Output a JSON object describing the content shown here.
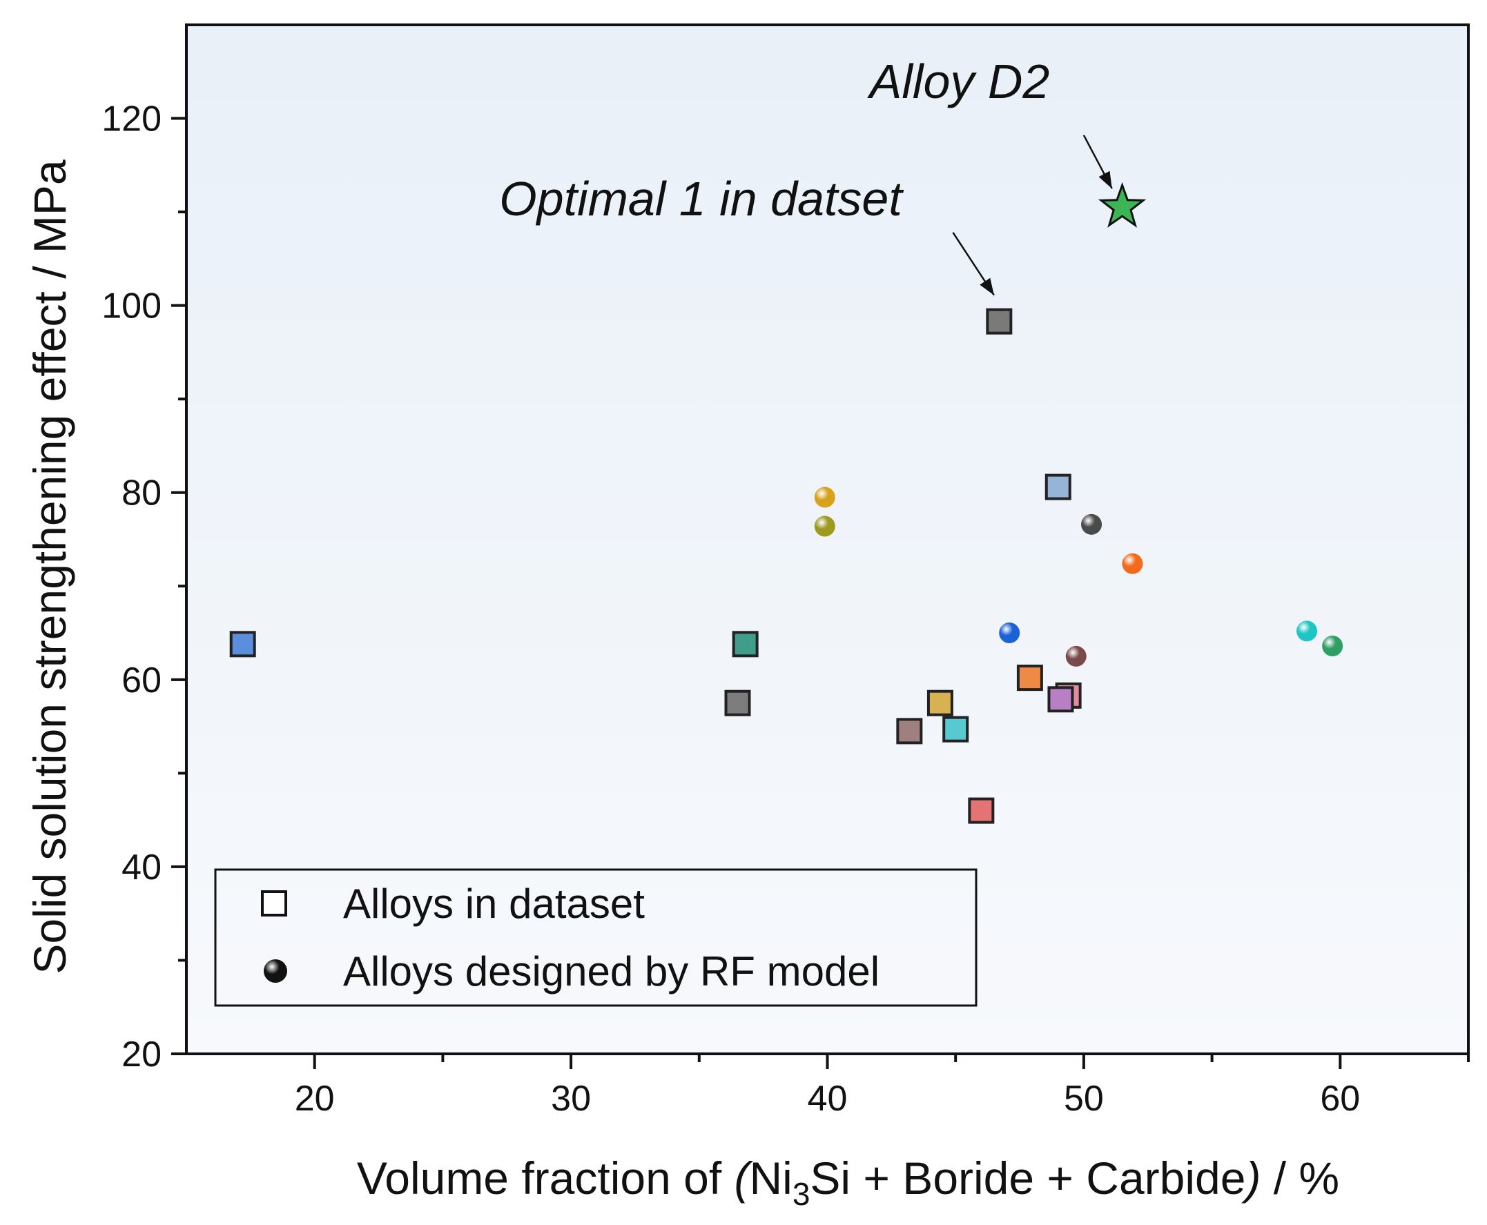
{
  "chart_data": {
    "type": "scatter",
    "title": "",
    "xlabel": {
      "prefix": "Volume fraction of ",
      "open_paren": "(",
      "ni": "Ni",
      "sub": "3",
      "rest": "Si + Boride + Carbide",
      "close_paren": ")",
      "unit": " / %"
    },
    "ylabel": "Solid solution strengthening effect / MPa",
    "xlim": [
      15,
      65
    ],
    "ylim": [
      20,
      130
    ],
    "x_ticks_major": [
      20,
      30,
      40,
      50,
      60
    ],
    "x_tick_labels": [
      "20",
      "30",
      "40",
      "50",
      "60"
    ],
    "x_ticks_minor": [
      25,
      35,
      45,
      55,
      65
    ],
    "y_ticks_major": [
      20,
      40,
      60,
      80,
      100,
      120
    ],
    "y_tick_labels": [
      "20",
      "40",
      "60",
      "80",
      "100",
      "120"
    ],
    "y_ticks_minor": [
      30,
      50,
      70,
      90,
      110
    ],
    "background_gradient": [
      "#e9f0f8",
      "#f7f9fc"
    ],
    "legend": {
      "placement": "bottom-left",
      "entries": [
        {
          "marker": "square",
          "label": "Alloys in dataset"
        },
        {
          "marker": "sphere",
          "label": "Alloys designed by RF model"
        }
      ]
    },
    "series": [
      {
        "marker": "square",
        "points": [
          {
            "x": 17.2,
            "y": 63.8,
            "color": "#5b8fdb"
          },
          {
            "x": 36.5,
            "y": 57.5,
            "color": "#7d7d7d"
          },
          {
            "x": 36.8,
            "y": 63.8,
            "color": "#3f9d8a"
          },
          {
            "x": 43.2,
            "y": 54.5,
            "color": "#9e8080"
          },
          {
            "x": 44.4,
            "y": 57.5,
            "color": "#d8b152"
          },
          {
            "x": 45.0,
            "y": 54.7,
            "color": "#56c9d1"
          },
          {
            "x": 46.0,
            "y": 46.0,
            "color": "#e57373"
          },
          {
            "x": 46.7,
            "y": 98.3,
            "color": "#7a7a7a"
          },
          {
            "x": 47.9,
            "y": 60.2,
            "color": "#ee8a45"
          },
          {
            "x": 49.0,
            "y": 80.6,
            "color": "#95b4d8"
          },
          {
            "x": 49.4,
            "y": 58.3,
            "color": "#e58b9e"
          },
          {
            "x": 49.1,
            "y": 57.9,
            "color": "#b97fc3"
          }
        ]
      },
      {
        "marker": "sphere",
        "points": [
          {
            "x": 39.9,
            "y": 79.5,
            "color": "#d6a21b"
          },
          {
            "x": 39.9,
            "y": 76.4,
            "color": "#9c9a1f"
          },
          {
            "x": 47.1,
            "y": 65.0,
            "color": "#1a62d6"
          },
          {
            "x": 49.7,
            "y": 62.5,
            "color": "#7a4a4a"
          },
          {
            "x": 50.3,
            "y": 76.6,
            "color": "#4a4a4a"
          },
          {
            "x": 51.9,
            "y": 72.4,
            "color": "#f26a1b"
          },
          {
            "x": 58.7,
            "y": 65.2,
            "color": "#1fc4c4"
          },
          {
            "x": 59.7,
            "y": 63.6,
            "color": "#2e9e62"
          }
        ]
      },
      {
        "marker": "star",
        "points": [
          {
            "x": 51.5,
            "y": 110.5,
            "color": "#3cb554"
          }
        ]
      }
    ],
    "annotations": [
      {
        "text": "Alloy D2",
        "arrow_from": [
          50.0,
          118.2
        ],
        "arrow_to": [
          51.1,
          112.5
        ]
      },
      {
        "text": "Optimal 1 in datset",
        "arrow_from": [
          44.9,
          107.8
        ],
        "arrow_to": [
          46.5,
          101.1
        ]
      }
    ]
  }
}
